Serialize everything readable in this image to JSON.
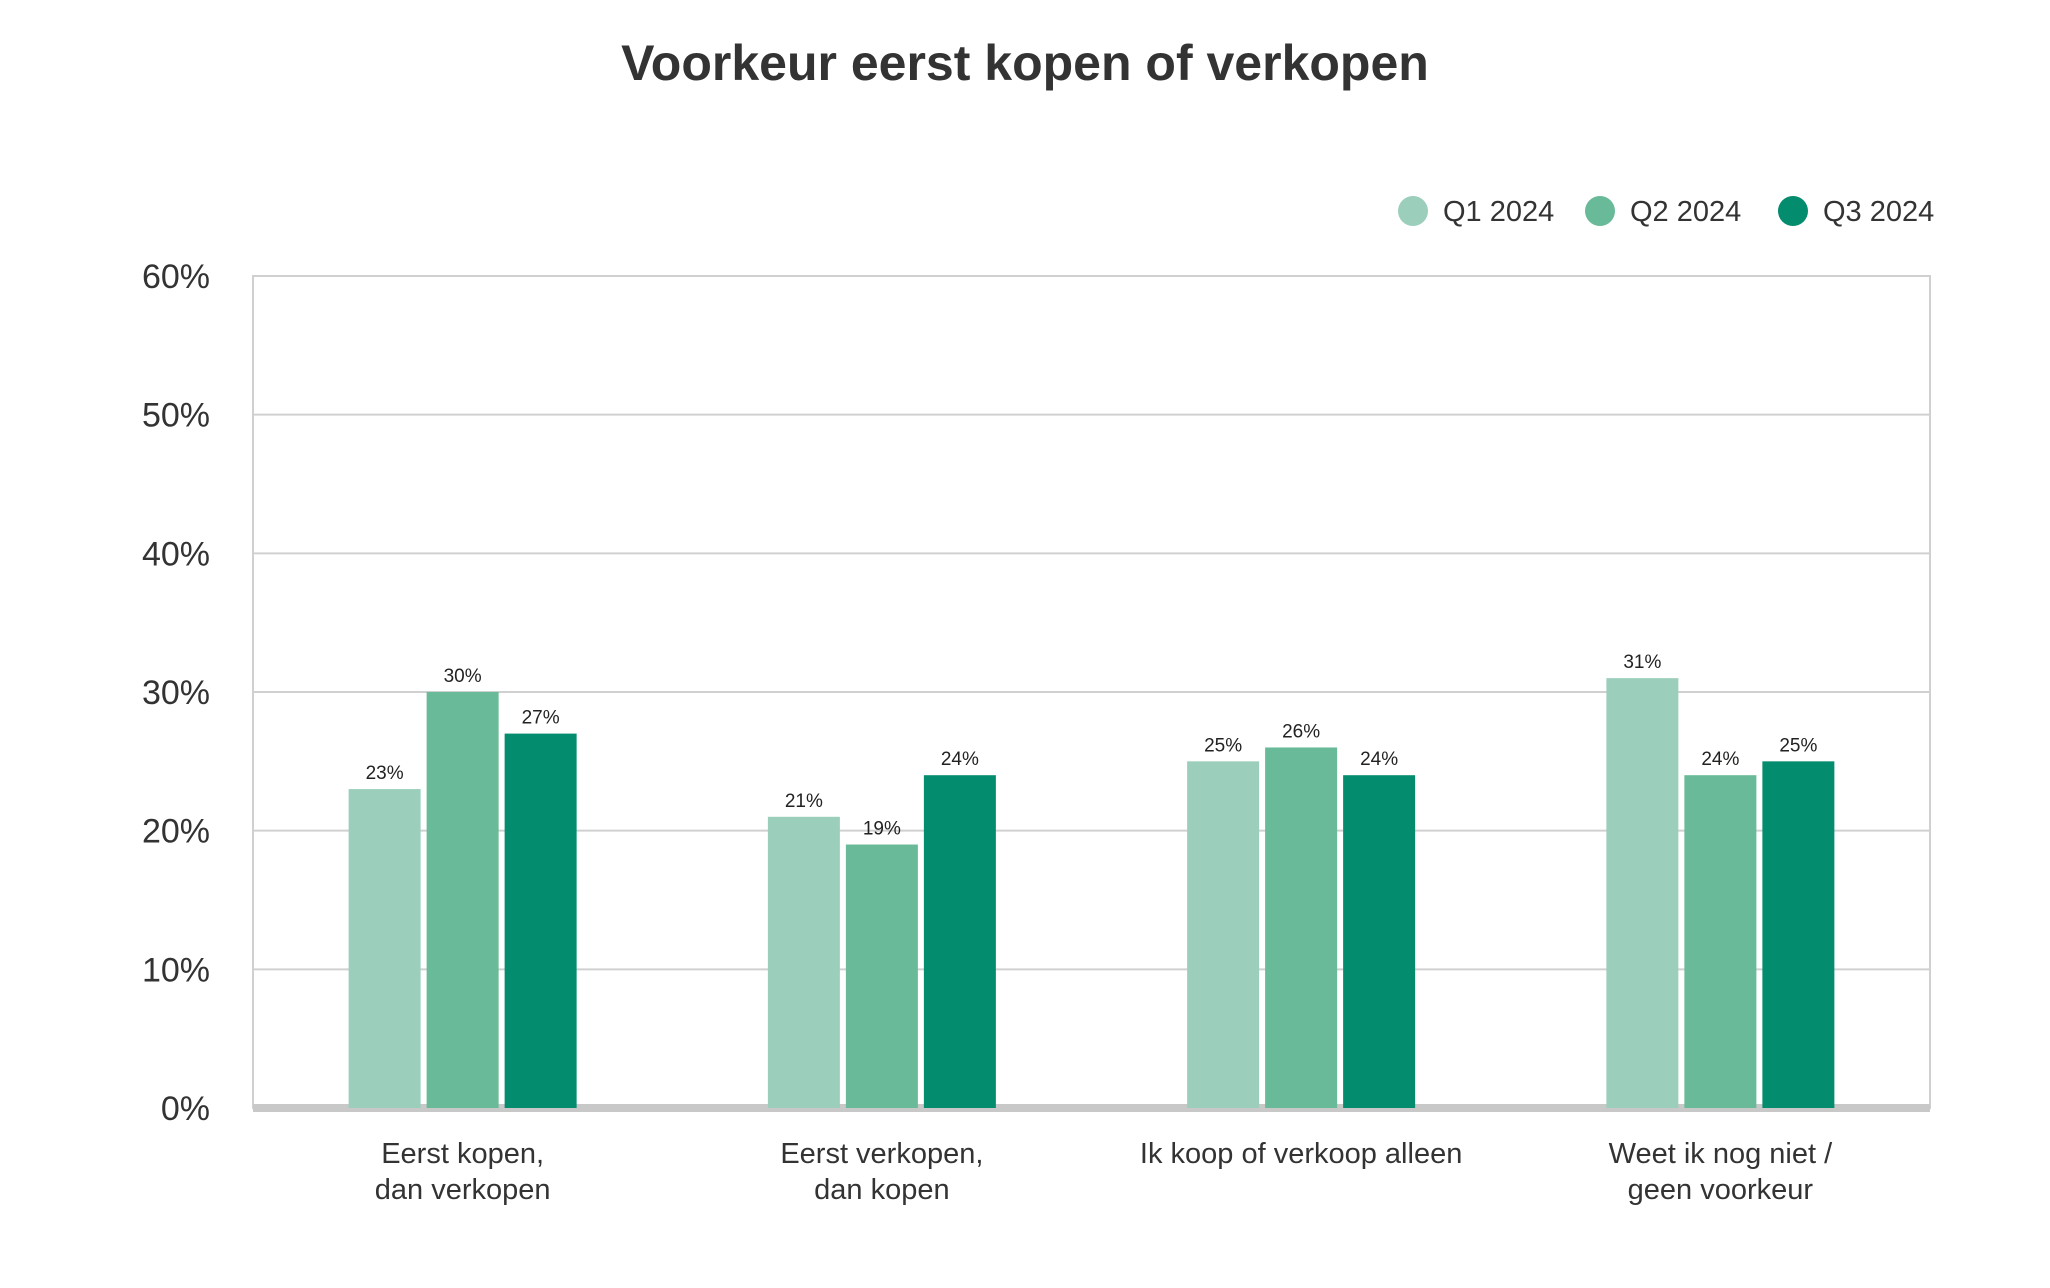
{
  "chart_data": {
    "type": "bar",
    "title": "Voorkeur eerst kopen of verkopen",
    "xlabel": "",
    "ylabel": "",
    "categories": [
      [
        "Eerst kopen,",
        "dan verkopen"
      ],
      [
        "Eerst verkopen,",
        "dan kopen"
      ],
      [
        "Ik koop of verkoop alleen"
      ],
      [
        "Weet ik nog niet /",
        "geen voorkeur"
      ]
    ],
    "series": [
      {
        "name": "Q1 2024",
        "color": "#9BCFBC",
        "values": [
          23,
          21,
          25,
          31
        ],
        "labels": [
          "23%",
          "21%",
          "25%",
          "31%"
        ]
      },
      {
        "name": "Q2 2024",
        "color": "#68BA98",
        "values": [
          30,
          19,
          26,
          24
        ],
        "labels": [
          "30%",
          "19%",
          "26%",
          "24%"
        ]
      },
      {
        "name": "Q3 2024",
        "color": "#048C6E",
        "values": [
          27,
          24,
          24,
          25
        ],
        "labels": [
          "27%",
          "24%",
          "24%",
          "25%"
        ]
      }
    ],
    "ylim": [
      0,
      60
    ],
    "yticks": [
      0,
      10,
      20,
      30,
      40,
      50,
      60
    ],
    "ytick_labels": [
      "0%",
      "10%",
      "20%",
      "30%",
      "40%",
      "50%",
      "60%"
    ],
    "grid": true,
    "legend_position": "top-right",
    "colors": {
      "grid": "#D0D0D0",
      "baseline": "#C8C8C8",
      "text": "#333333"
    }
  }
}
